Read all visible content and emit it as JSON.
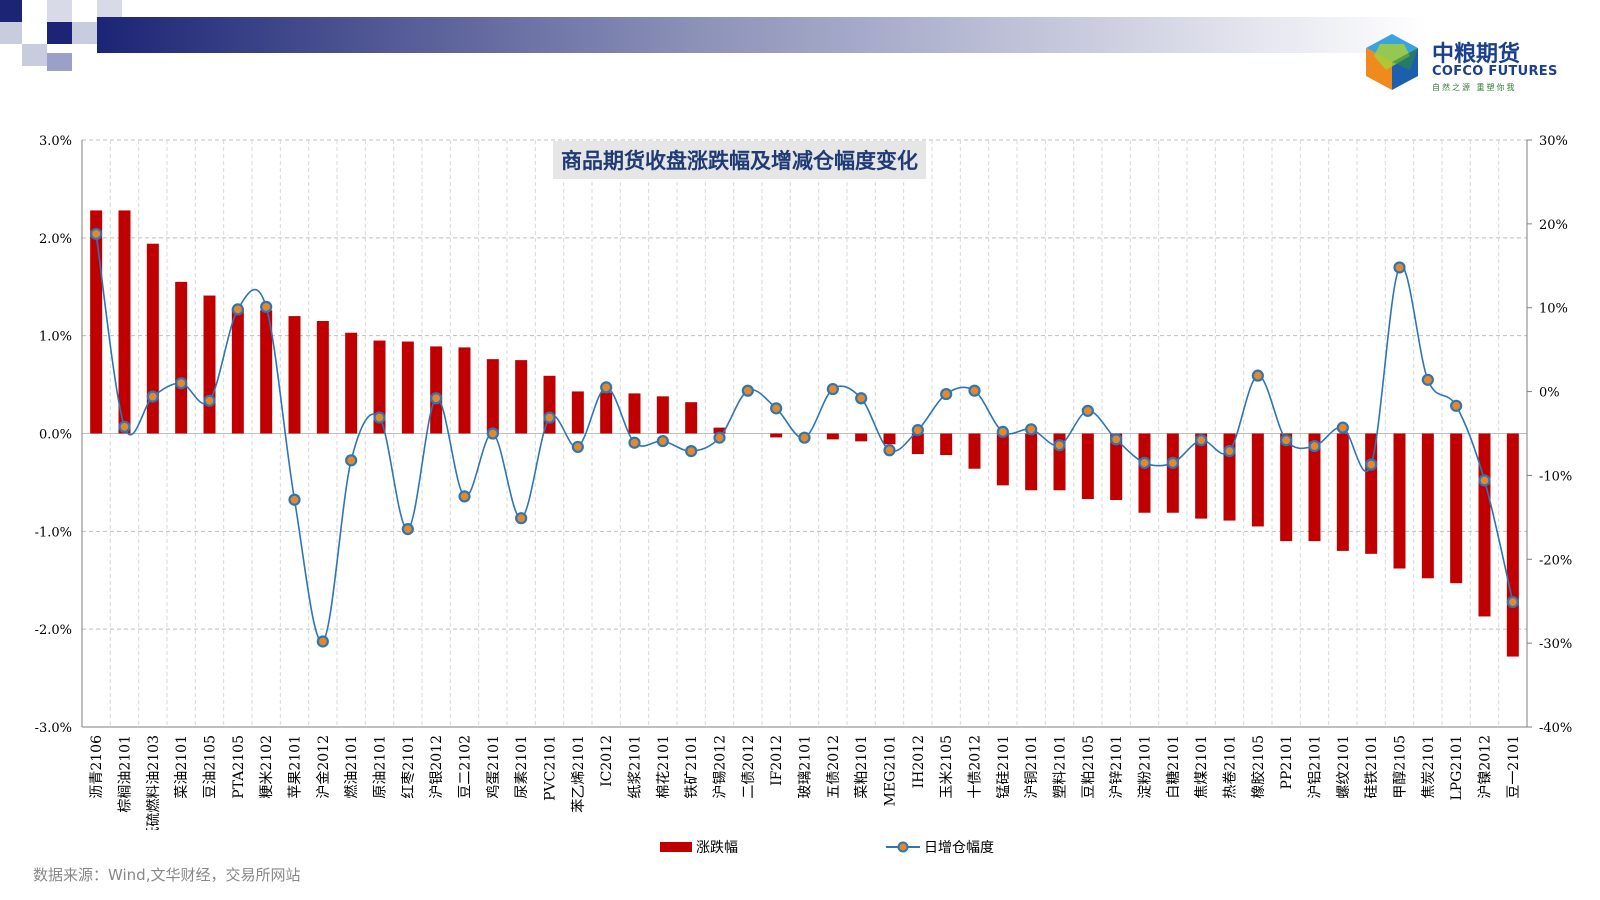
{
  "brand": {
    "title": "中粮期货",
    "english": "COFCO FUTURES",
    "slogan": "自然之源 重塑你我"
  },
  "source": "数据来源：Wind,文华财经，交易所网站",
  "colors": {
    "bar": "#c00000",
    "line": "#2e75b6",
    "marker_fill": "#e3882b",
    "title": "#1f3a75"
  },
  "chart_data": {
    "type": "bar",
    "title": "商品期货收盘涨跌幅及增减仓幅度变化",
    "categories": [
      "沥青2106",
      "棕榈油2101",
      "低硫燃料油2103",
      "菜油2101",
      "豆油2105",
      "PTA2105",
      "粳米2102",
      "苹果2101",
      "沪金2012",
      "燃油2101",
      "原油2101",
      "红枣2101",
      "沪银2012",
      "豆二2102",
      "鸡蛋2101",
      "尿素2101",
      "PVC2101",
      "苯乙烯2101",
      "IC2012",
      "纸浆2101",
      "棉花2101",
      "铁矿2101",
      "沪锡2012",
      "二债2012",
      "IF2012",
      "玻璃2101",
      "五债2012",
      "菜粕2101",
      "MEG2101",
      "IH2012",
      "玉米2105",
      "十债2012",
      "锰硅2101",
      "沪铜2101",
      "塑料2101",
      "豆粕2105",
      "沪锌2101",
      "淀粉2101",
      "白糖2101",
      "焦煤2101",
      "热卷2101",
      "橡胶2105",
      "PP2101",
      "沪铝2101",
      "螺纹2101",
      "硅铁2101",
      "甲醇2105",
      "焦炭2101",
      "LPG2101",
      "沪镍2012",
      "豆一2101"
    ],
    "y_left": {
      "ticks": [
        "3.0%",
        "2.0%",
        "1.0%",
        "0.0%",
        "-1.0%",
        "-2.0%",
        "-3.0%"
      ],
      "ylim": [
        -3.0,
        3.0
      ]
    },
    "y_right": {
      "ticks": [
        "30%",
        "20%",
        "10%",
        "0%",
        "-10%",
        "-20%",
        "-30%",
        "-40%"
      ],
      "ylim": [
        -40,
        30
      ]
    },
    "grid": true,
    "legend_position": "bottom",
    "series": [
      {
        "name": "涨跌幅",
        "type": "bar",
        "axis": "left",
        "values": [
          2.28,
          2.28,
          1.94,
          1.55,
          1.41,
          1.28,
          1.26,
          1.2,
          1.15,
          1.03,
          0.95,
          0.94,
          0.89,
          0.88,
          0.76,
          0.75,
          0.59,
          0.43,
          0.42,
          0.41,
          0.38,
          0.32,
          0.06,
          0.0,
          -0.04,
          0.0,
          -0.06,
          -0.08,
          -0.11,
          -0.21,
          -0.22,
          -0.36,
          -0.53,
          -0.58,
          -0.58,
          -0.67,
          -0.68,
          -0.81,
          -0.81,
          -0.87,
          -0.89,
          -0.95,
          -1.1,
          -1.1,
          -1.2,
          -1.23,
          -1.38,
          -1.48,
          -1.53,
          -1.87,
          -2.28
        ]
      },
      {
        "name": "日增仓幅度",
        "type": "line",
        "axis": "right",
        "values": [
          18.8,
          -4.2,
          -0.6,
          1.0,
          -1.1,
          9.8,
          10.1,
          -12.9,
          -29.8,
          -8.2,
          -3.1,
          -16.4,
          -0.8,
          -12.5,
          -5.0,
          -15.1,
          -3.1,
          -6.6,
          0.5,
          -6.1,
          -5.9,
          -7.1,
          -5.5,
          0.1,
          -2.0,
          -5.5,
          0.3,
          -0.8,
          -7.0,
          -4.6,
          -0.3,
          0.1,
          -4.8,
          -4.5,
          -6.4,
          -2.3,
          -5.7,
          -8.5,
          -8.5,
          -5.8,
          -7.1,
          1.9,
          -5.8,
          -6.5,
          -4.3,
          -8.7,
          14.8,
          1.4,
          -1.7,
          -10.6,
          -25.1
        ]
      }
    ]
  }
}
